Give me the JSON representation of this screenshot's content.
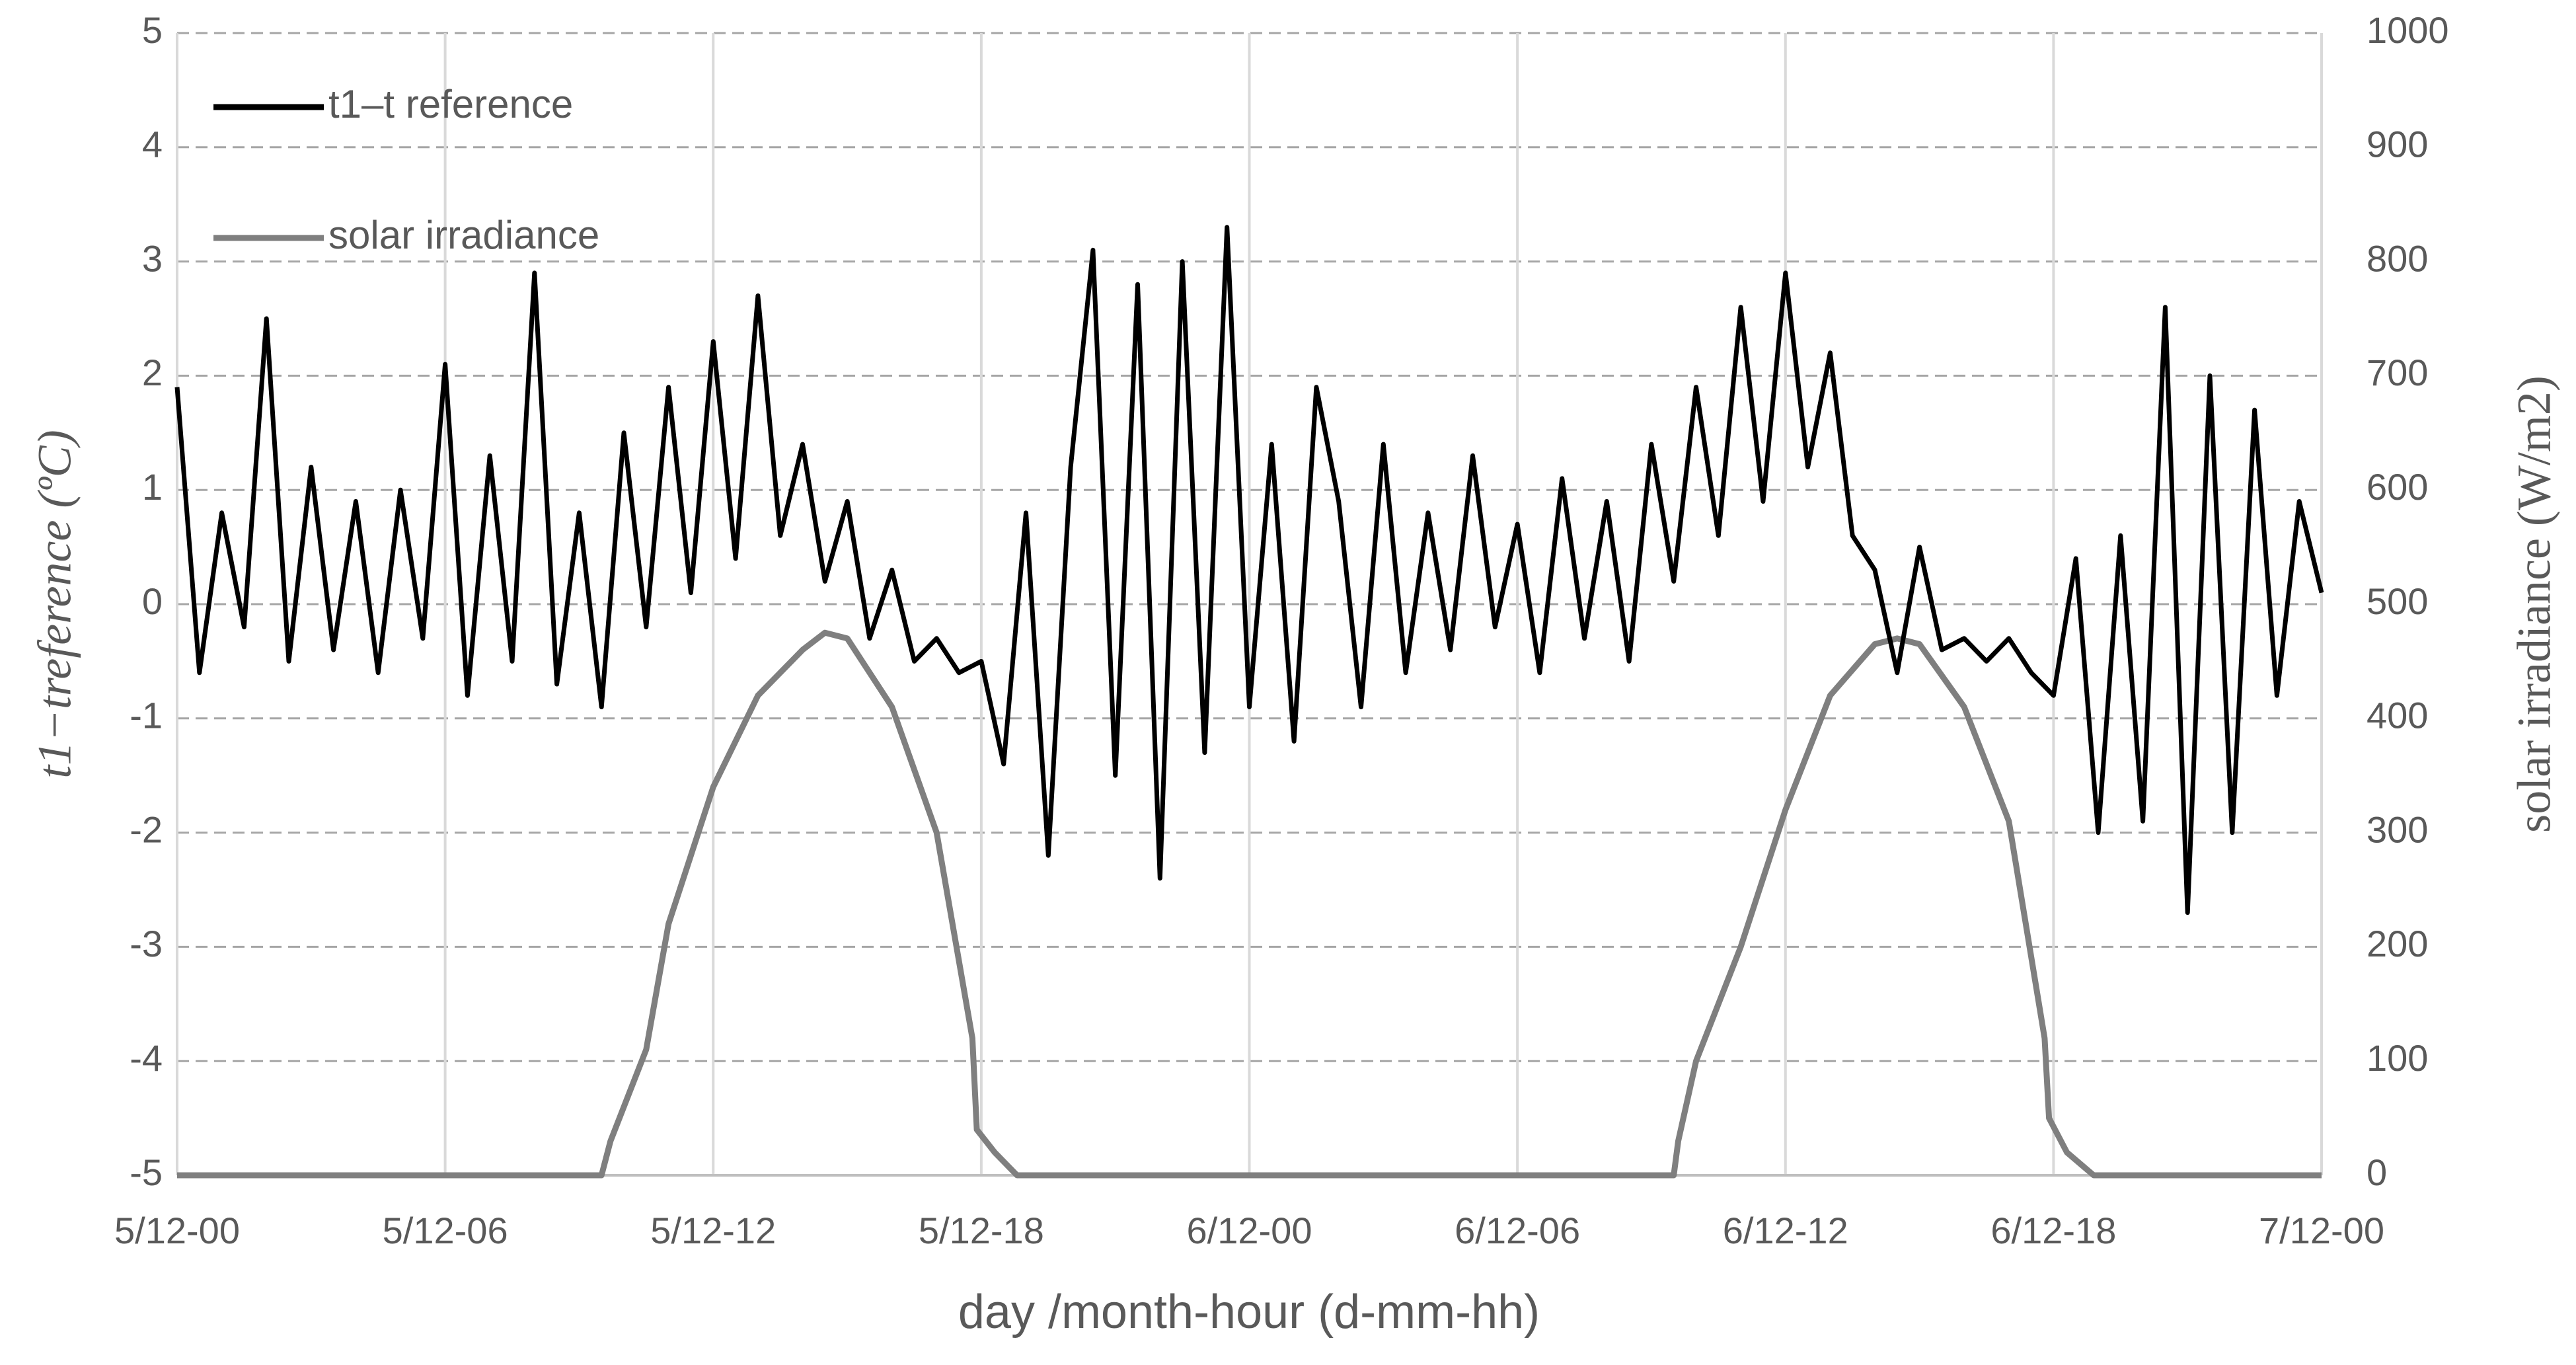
{
  "chart_data": {
    "type": "line",
    "xlabel": "day /month-hour (d-mm-hh)",
    "ylabel": "t1−treference (ºC)",
    "y2label": "solar irradiance (W/m2)",
    "xlim": [
      0,
      48
    ],
    "xticks": [
      {
        "value": 0,
        "label": "5/12-00"
      },
      {
        "value": 6,
        "label": "5/12-06"
      },
      {
        "value": 12,
        "label": "5/12-12"
      },
      {
        "value": 18,
        "label": "5/12-18"
      },
      {
        "value": 24,
        "label": "6/12-00"
      },
      {
        "value": 30,
        "label": "6/12-06"
      },
      {
        "value": 36,
        "label": "6/12-12"
      },
      {
        "value": 42,
        "label": "6/12-18"
      },
      {
        "value": 48,
        "label": "7/12-00"
      }
    ],
    "ylim": [
      -5,
      5
    ],
    "yticks": [
      -5,
      -4,
      -3,
      -2,
      -1,
      0,
      1,
      2,
      3,
      4,
      5
    ],
    "y2lim": [
      0,
      1000
    ],
    "y2ticks": [
      0,
      100,
      200,
      300,
      400,
      500,
      600,
      700,
      800,
      900,
      1000
    ],
    "grid": true,
    "legend": "upper-left",
    "series": [
      {
        "name": "t1–t reference",
        "color": "#000000",
        "x": [
          0,
          0.5,
          1,
          1.5,
          2,
          2.5,
          3,
          3.5,
          4,
          4.5,
          5,
          5.5,
          6,
          6.5,
          7,
          7.5,
          8,
          8.5,
          9,
          9.5,
          10,
          10.5,
          11,
          11.5,
          12,
          12.5,
          13,
          13.5,
          14,
          14.5,
          15,
          15.5,
          16,
          16.5,
          17,
          17.5,
          18,
          18.5,
          19,
          19.5,
          20,
          20.5,
          21,
          21.5,
          22,
          22.5,
          23,
          23.5,
          24,
          24.5,
          25,
          25.5,
          26,
          26.5,
          27,
          27.5,
          28,
          28.5,
          29,
          29.5,
          30,
          30.5,
          31,
          31.5,
          32,
          32.5,
          33,
          33.5,
          34,
          34.5,
          35,
          35.5,
          36,
          36.5,
          37,
          37.5,
          38,
          38.5,
          39,
          39.5,
          40,
          40.5,
          41,
          41.5,
          42,
          42.5,
          43,
          43.5,
          44,
          44.5,
          45,
          45.5,
          46,
          46.5,
          47,
          47.5,
          48
        ],
        "values": [
          1.9,
          -0.6,
          0.8,
          -0.2,
          2.5,
          -0.5,
          1.2,
          -0.4,
          0.9,
          -0.6,
          1.0,
          -0.3,
          2.1,
          -0.8,
          1.3,
          -0.5,
          2.9,
          -0.7,
          0.8,
          -0.9,
          1.5,
          -0.2,
          1.9,
          0.1,
          2.3,
          0.4,
          2.7,
          0.6,
          1.4,
          0.2,
          0.9,
          -0.3,
          0.3,
          -0.5,
          -0.3,
          -0.6,
          -0.5,
          -1.4,
          0.8,
          -2.2,
          1.2,
          3.1,
          -1.5,
          2.8,
          -2.4,
          3.0,
          -1.3,
          3.3,
          -0.9,
          1.4,
          -1.2,
          1.9,
          0.9,
          -0.9,
          1.4,
          -0.6,
          0.8,
          -0.4,
          1.3,
          -0.2,
          0.7,
          -0.6,
          1.1,
          -0.3,
          0.9,
          -0.5,
          1.4,
          0.2,
          1.9,
          0.6,
          2.6,
          0.9,
          2.9,
          1.2,
          2.2,
          0.6,
          0.3,
          -0.6,
          0.5,
          -0.4,
          -0.3,
          -0.5,
          -0.3,
          -0.6,
          -0.8,
          0.4,
          -2.0,
          0.6,
          -1.9,
          2.6,
          -2.7,
          2.0,
          -2.0,
          1.7,
          -0.8,
          0.9,
          0.1
        ]
      },
      {
        "name": "solar irradiance",
        "color": "#7f7f7f",
        "axis": "y2",
        "x": [
          0,
          9.5,
          9.7,
          10.5,
          11,
          12,
          13,
          14,
          14.5,
          15,
          16,
          17,
          17.8,
          17.9,
          18.3,
          18.8,
          33.5,
          33.6,
          34,
          35,
          36,
          37,
          38,
          38.5,
          39,
          40,
          41,
          41.8,
          41.9,
          42.3,
          42.9,
          48
        ],
        "values": [
          0,
          0,
          30,
          110,
          220,
          340,
          420,
          460,
          475,
          470,
          410,
          300,
          120,
          40,
          20,
          0,
          0,
          30,
          100,
          200,
          320,
          420,
          465,
          470,
          465,
          410,
          310,
          120,
          50,
          20,
          0,
          0
        ]
      }
    ]
  }
}
